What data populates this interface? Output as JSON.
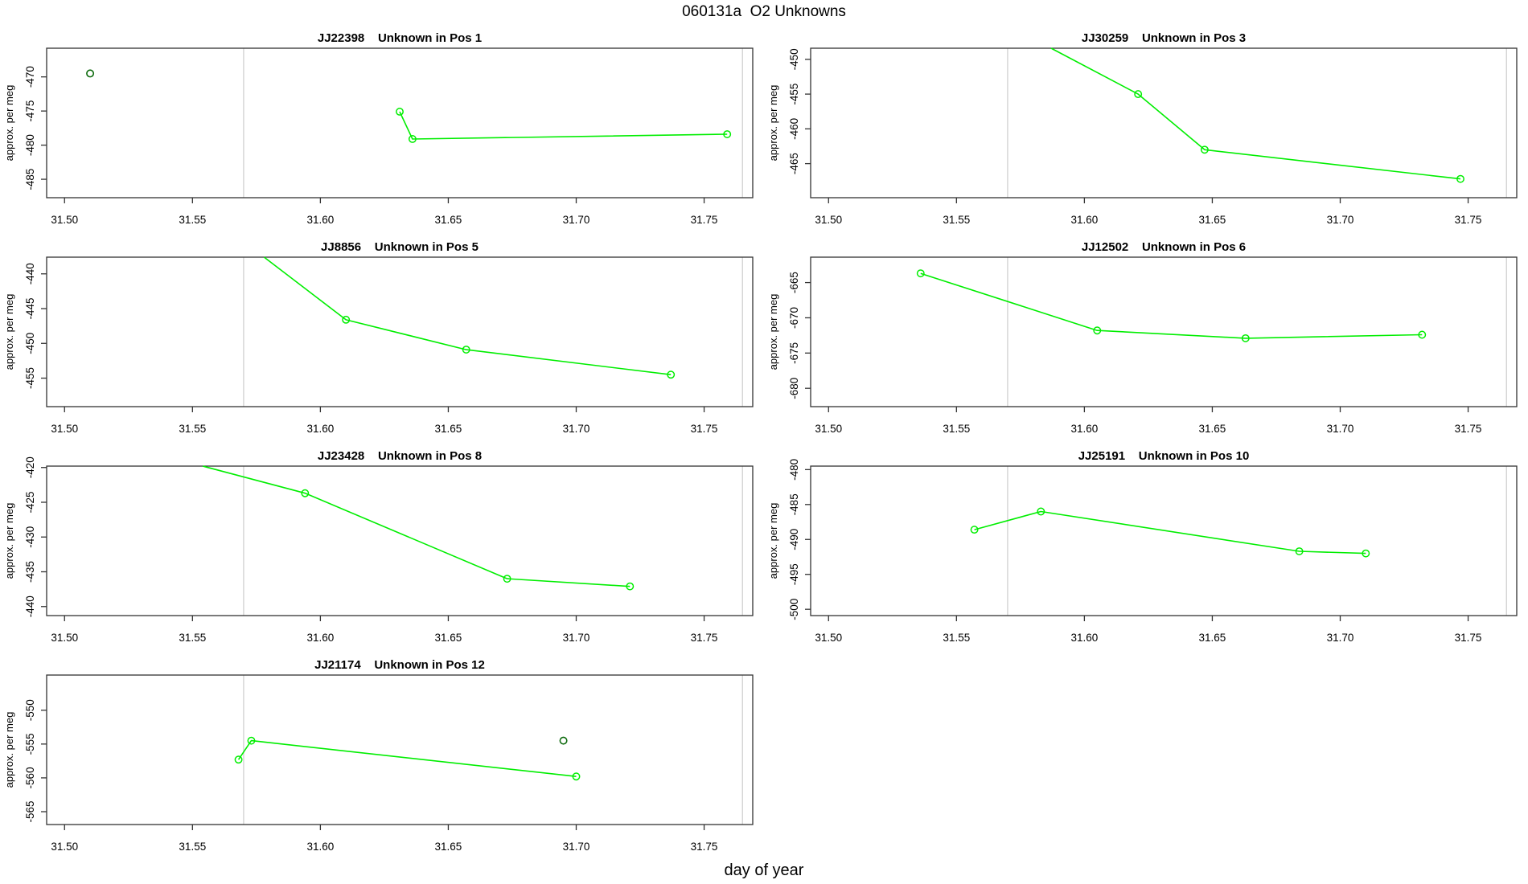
{
  "chart_data": {
    "type": "line",
    "figure_title": "060131a  O2 Unknowns",
    "xlabel": "day of year",
    "ylabel": "approx. per meg",
    "xlim": [
      31.493,
      31.769
    ],
    "x_ticks": [
      31.5,
      31.55,
      31.6,
      31.65,
      31.7,
      31.75
    ],
    "x_tick_labels": [
      "31.50",
      "31.55",
      "31.60",
      "31.65",
      "31.70",
      "31.75"
    ],
    "vlines": [
      31.57,
      31.765
    ],
    "grid": "off",
    "legend": "none",
    "colors": {
      "series_line": "#00ee00",
      "series_marker": "#00ee00",
      "isolated_point": "#0e6b0e",
      "vline": "#d4d4d4",
      "box": "#333333",
      "text": "#000000",
      "background": "#ffffff"
    },
    "plots": [
      {
        "id": "JJ22398",
        "title": "JJ22398    Unknown in Pos 1",
        "ylim": [
          -487.7,
          -465.8
        ],
        "y_ticks": [
          -485,
          -480,
          -475,
          -470
        ],
        "line": [
          [
            31.631,
            -475.1
          ],
          [
            31.636,
            -479.1
          ],
          [
            31.759,
            -478.4
          ]
        ],
        "markers": [
          [
            31.631,
            -475.1
          ],
          [
            31.636,
            -479.1
          ],
          [
            31.759,
            -478.4
          ]
        ],
        "dark_points": [
          [
            31.51,
            -469.5
          ]
        ]
      },
      {
        "id": "JJ30259",
        "title": "JJ30259    Unknown in Pos 3",
        "ylim": [
          -469.9,
          -448.4
        ],
        "y_ticks": [
          -465,
          -460,
          -455,
          -450
        ],
        "line": [
          [
            31.587,
            -448.4
          ],
          [
            31.621,
            -455.0
          ],
          [
            31.647,
            -463.0
          ],
          [
            31.747,
            -467.2
          ]
        ],
        "markers": [
          [
            31.621,
            -455.0
          ],
          [
            31.647,
            -463.0
          ],
          [
            31.747,
            -467.2
          ]
        ],
        "dark_points": []
      },
      {
        "id": "JJ8856",
        "title": "JJ8856    Unknown in Pos 5",
        "ylim": [
          -459.1,
          -437.6
        ],
        "y_ticks": [
          -455,
          -450,
          -445,
          -440
        ],
        "line": [
          [
            31.578,
            -437.6
          ],
          [
            31.61,
            -446.6
          ],
          [
            31.657,
            -450.9
          ],
          [
            31.737,
            -454.5
          ]
        ],
        "markers": [
          [
            31.61,
            -446.6
          ],
          [
            31.657,
            -450.9
          ],
          [
            31.737,
            -454.5
          ]
        ],
        "dark_points": []
      },
      {
        "id": "JJ12502",
        "title": "JJ12502    Unknown in Pos 6",
        "ylim": [
          -682.6,
          -661.4
        ],
        "y_ticks": [
          -680,
          -675,
          -670,
          -665
        ],
        "line": [
          [
            31.536,
            -663.7
          ],
          [
            31.605,
            -671.8
          ],
          [
            31.663,
            -672.9
          ],
          [
            31.732,
            -672.4
          ]
        ],
        "markers": [
          [
            31.536,
            -663.7
          ],
          [
            31.605,
            -671.8
          ],
          [
            31.663,
            -672.9
          ],
          [
            31.732,
            -672.4
          ]
        ],
        "dark_points": []
      },
      {
        "id": "JJ23428",
        "title": "JJ23428    Unknown in Pos 8",
        "ylim": [
          -441.3,
          -419.8
        ],
        "y_ticks": [
          -440,
          -435,
          -430,
          -425,
          -420
        ],
        "line": [
          [
            31.554,
            -419.8
          ],
          [
            31.594,
            -423.7
          ],
          [
            31.673,
            -436.0
          ],
          [
            31.721,
            -437.1
          ]
        ],
        "markers": [
          [
            31.594,
            -423.7
          ],
          [
            31.673,
            -436.0
          ],
          [
            31.721,
            -437.1
          ]
        ],
        "dark_points": []
      },
      {
        "id": "JJ25191",
        "title": "JJ25191    Unknown in Pos 10",
        "ylim": [
          -500.9,
          -479.5
        ],
        "y_ticks": [
          -500,
          -495,
          -490,
          -485,
          -480
        ],
        "line": [
          [
            31.557,
            -488.6
          ],
          [
            31.583,
            -486.0
          ],
          [
            31.684,
            -491.7
          ],
          [
            31.71,
            -492.0
          ]
        ],
        "markers": [
          [
            31.557,
            -488.6
          ],
          [
            31.583,
            -486.0
          ],
          [
            31.684,
            -491.7
          ],
          [
            31.71,
            -492.0
          ]
        ],
        "dark_points": []
      },
      {
        "id": "JJ21174",
        "title": "JJ21174    Unknown in Pos 12",
        "ylim": [
          -566.9,
          -544.8
        ],
        "y_ticks": [
          -565,
          -560,
          -555,
          -550
        ],
        "line": [
          [
            31.568,
            -557.3
          ],
          [
            31.573,
            -554.5
          ],
          [
            31.7,
            -559.8
          ]
        ],
        "markers": [
          [
            31.568,
            -557.3
          ],
          [
            31.573,
            -554.5
          ],
          [
            31.7,
            -559.8
          ]
        ],
        "dark_points": [
          [
            31.695,
            -554.5
          ]
        ]
      }
    ]
  }
}
